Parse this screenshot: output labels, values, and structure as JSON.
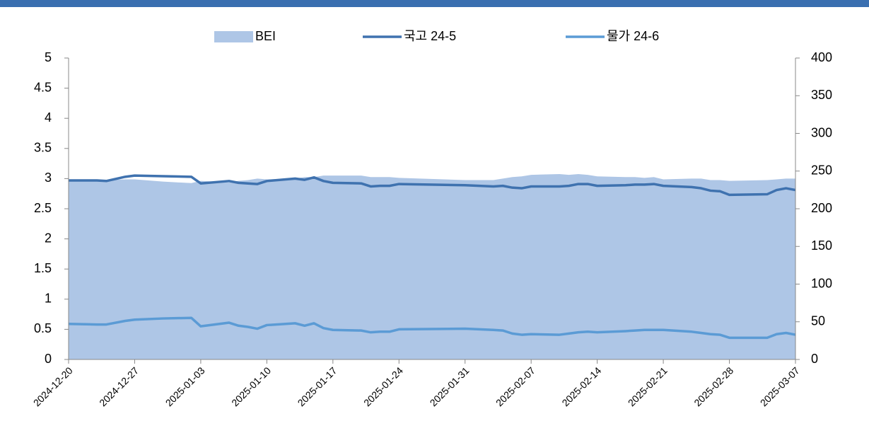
{
  "chart_data": {
    "type": "line",
    "x": [
      "2024-12-20",
      "2024-12-23",
      "2024-12-24",
      "2024-12-26",
      "2024-12-27",
      "2024-12-30",
      "2025-01-02",
      "2025-01-03",
      "2025-01-06",
      "2025-01-07",
      "2025-01-08",
      "2025-01-09",
      "2025-01-10",
      "2025-01-13",
      "2025-01-14",
      "2025-01-15",
      "2025-01-16",
      "2025-01-17",
      "2025-01-20",
      "2025-01-21",
      "2025-01-22",
      "2025-01-23",
      "2025-01-24",
      "2025-01-31",
      "2025-02-03",
      "2025-02-04",
      "2025-02-05",
      "2025-02-06",
      "2025-02-07",
      "2025-02-10",
      "2025-02-11",
      "2025-02-12",
      "2025-02-13",
      "2025-02-14",
      "2025-02-17",
      "2025-02-18",
      "2025-02-19",
      "2025-02-20",
      "2025-02-21",
      "2025-02-24",
      "2025-02-25",
      "2025-02-26",
      "2025-02-27",
      "2025-02-28",
      "2025-03-04",
      "2025-03-05",
      "2025-03-06",
      "2025-03-07"
    ],
    "series": [
      {
        "name": "BEI",
        "kind": "area",
        "axis": "y2",
        "color": "#aec6e6",
        "values": [
          238,
          239,
          238,
          239,
          239,
          236,
          234,
          237,
          235,
          237,
          238,
          240,
          239,
          240,
          242,
          242,
          244,
          244,
          244,
          242,
          242,
          242,
          241,
          238,
          238,
          240,
          242,
          243,
          245,
          246,
          245,
          246,
          245,
          243,
          242,
          242,
          241,
          242,
          239,
          240,
          240,
          238,
          238,
          237,
          238,
          239,
          240,
          240
        ]
      },
      {
        "name": "국고 24-5",
        "color": "#3f72af",
        "values": [
          2.97,
          2.97,
          2.96,
          3.03,
          3.05,
          3.04,
          3.03,
          2.92,
          2.96,
          2.93,
          2.92,
          2.91,
          2.96,
          3.0,
          2.98,
          3.02,
          2.96,
          2.93,
          2.92,
          2.87,
          2.88,
          2.88,
          2.91,
          2.89,
          2.87,
          2.88,
          2.85,
          2.84,
          2.87,
          2.87,
          2.88,
          2.91,
          2.91,
          2.88,
          2.89,
          2.9,
          2.9,
          2.91,
          2.88,
          2.86,
          2.84,
          2.8,
          2.79,
          2.73,
          2.74,
          2.81,
          2.84,
          2.81
        ]
      },
      {
        "name": "물가 24-6",
        "color": "#5b9bd5",
        "values": [
          0.59,
          0.58,
          0.58,
          0.64,
          0.66,
          0.68,
          0.69,
          0.55,
          0.61,
          0.56,
          0.54,
          0.51,
          0.57,
          0.6,
          0.56,
          0.6,
          0.52,
          0.49,
          0.48,
          0.45,
          0.46,
          0.46,
          0.5,
          0.51,
          0.49,
          0.48,
          0.43,
          0.41,
          0.42,
          0.41,
          0.43,
          0.45,
          0.46,
          0.45,
          0.47,
          0.48,
          0.49,
          0.49,
          0.49,
          0.46,
          0.44,
          0.42,
          0.41,
          0.36,
          0.36,
          0.42,
          0.44,
          0.41
        ]
      }
    ],
    "xlim": [
      "2024-12-20",
      "2025-03-07"
    ],
    "xticks": [
      "2024-12-20",
      "2024-12-27",
      "2025-01-03",
      "2025-01-10",
      "2025-01-17",
      "2025-01-24",
      "2025-01-31",
      "2025-02-07",
      "2025-02-14",
      "2025-02-21",
      "2025-02-28",
      "2025-03-07"
    ],
    "ylim": [
      0,
      5
    ],
    "yticks": [
      0,
      0.5,
      1,
      1.5,
      2,
      2.5,
      3,
      3.5,
      4,
      4.5,
      5
    ],
    "y2lim": [
      0,
      400
    ],
    "y2ticks": [
      0,
      50,
      100,
      150,
      200,
      250,
      300,
      350,
      400
    ],
    "legend": "top"
  }
}
